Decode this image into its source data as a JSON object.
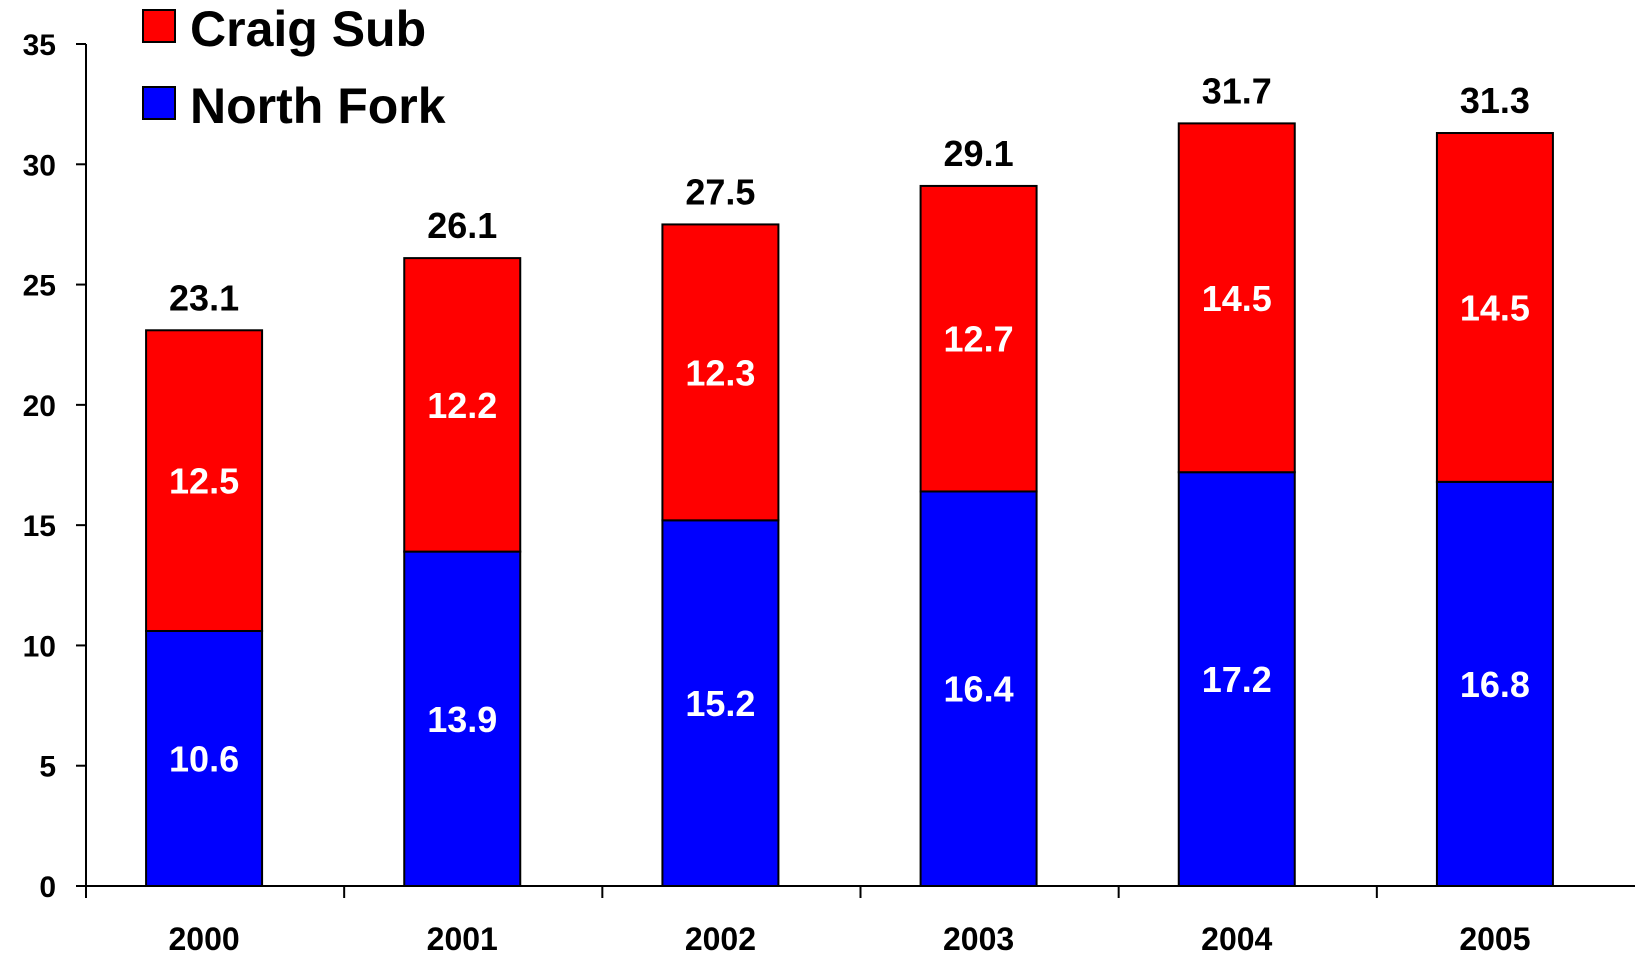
{
  "chart_data": {
    "type": "bar",
    "stacked": true,
    "categories": [
      "2000",
      "2001",
      "2002",
      "2003",
      "2004",
      "2005"
    ],
    "series": [
      {
        "name": "North Fork",
        "color": "#0000ff",
        "values": [
          10.6,
          13.9,
          15.2,
          16.4,
          17.2,
          16.8
        ],
        "labels": [
          "10.6",
          "13.9",
          "15.2",
          "16.4",
          "17.2",
          "16.8"
        ]
      },
      {
        "name": "Craig Sub",
        "color": "#ff0000",
        "values": [
          12.5,
          12.2,
          12.3,
          12.7,
          14.5,
          14.5
        ],
        "labels": [
          "12.5",
          "12.2",
          "12.3",
          "12.7",
          "14.5",
          "14.5"
        ]
      }
    ],
    "totals": [
      23.1,
      26.1,
      27.5,
      29.1,
      31.7,
      31.3
    ],
    "total_labels": [
      "23.1",
      "26.1",
      "27.5",
      "29.1",
      "31.7",
      "31.3"
    ],
    "yticks": [
      0,
      5,
      10,
      15,
      20,
      25,
      30,
      35
    ],
    "ytick_labels": [
      "0",
      "5",
      "10",
      "15",
      "20",
      "25",
      "30",
      "35"
    ],
    "ylim": [
      0,
      35
    ],
    "title": "",
    "xlabel": "",
    "ylabel": "",
    "grid": false,
    "legend": {
      "position": "top-left",
      "order": [
        "Craig Sub",
        "North Fork"
      ]
    }
  }
}
